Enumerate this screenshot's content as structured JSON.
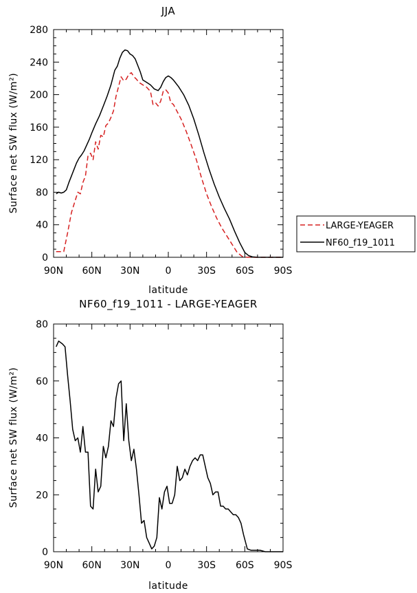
{
  "chart_data": [
    {
      "type": "line",
      "title": "JJA",
      "xlabel": "latitude",
      "ylabel": "Surface net SW flux (W/m²)",
      "xlim": [
        90,
        -90
      ],
      "ylim": [
        0,
        280
      ],
      "xticks": [
        90,
        60,
        30,
        0,
        -30,
        -60,
        -90
      ],
      "xtick_labels": [
        "90N",
        "60N",
        "30N",
        "0",
        "30S",
        "60S",
        "90S"
      ],
      "yticks": [
        0,
        40,
        80,
        120,
        160,
        200,
        240,
        280
      ],
      "ytick_labels": [
        "0",
        "40",
        "80",
        "120",
        "160",
        "200",
        "240",
        "280"
      ],
      "legend_position": "right-outside",
      "series": [
        {
          "name": "LARGE-YEAGER",
          "color": "#d62020",
          "style": "dashed",
          "x": [
            88,
            85,
            82,
            79,
            76,
            73,
            71,
            69,
            67,
            65,
            63,
            61,
            59,
            57,
            55,
            53,
            51,
            49,
            47,
            45,
            43,
            41,
            39,
            37,
            35,
            33,
            31,
            29,
            27,
            25,
            23,
            20,
            17,
            14,
            12,
            10,
            8,
            6,
            4,
            2,
            0,
            -2,
            -4,
            -6,
            -8,
            -10,
            -14,
            -18,
            -22,
            -26,
            -30,
            -34,
            -38,
            -42,
            -46,
            -50,
            -54,
            -58,
            -62,
            -66,
            -70,
            -75,
            -80,
            -86,
            -90
          ],
          "y": [
            7,
            7,
            7,
            30,
            55,
            70,
            80,
            78,
            92,
            100,
            125,
            128,
            120,
            142,
            133,
            150,
            148,
            162,
            165,
            172,
            180,
            198,
            210,
            222,
            217,
            219,
            225,
            227,
            222,
            219,
            215,
            212,
            209,
            204,
            188,
            190,
            186,
            192,
            204,
            206,
            202,
            190,
            188,
            182,
            176,
            170,
            155,
            138,
            120,
            98,
            78,
            62,
            48,
            36,
            26,
            16,
            6,
            1,
            0,
            0,
            0,
            0,
            0,
            0,
            0
          ]
        },
        {
          "name": "NF60_f19_1011",
          "color": "#000000",
          "style": "solid",
          "x": [
            88,
            86,
            84,
            82,
            80,
            78,
            76,
            74,
            72,
            70,
            68,
            66,
            64,
            62,
            60,
            57,
            54,
            51,
            48,
            45,
            42,
            40,
            38,
            36,
            34,
            32,
            30,
            28,
            26,
            24,
            22,
            20,
            17,
            14,
            11,
            8,
            6,
            4,
            2,
            0,
            -2,
            -4,
            -8,
            -12,
            -16,
            -20,
            -24,
            -28,
            -32,
            -36,
            -40,
            -44,
            -48,
            -52,
            -56,
            -60,
            -63,
            -66,
            -70,
            -75,
            -80,
            -86,
            -90
          ],
          "y": [
            78,
            80,
            79,
            80,
            83,
            92,
            100,
            108,
            116,
            122,
            126,
            131,
            138,
            145,
            153,
            164,
            174,
            186,
            198,
            212,
            230,
            235,
            245,
            252,
            255,
            254,
            250,
            248,
            244,
            236,
            228,
            218,
            215,
            212,
            207,
            205,
            209,
            216,
            221,
            223,
            221,
            218,
            210,
            200,
            187,
            170,
            150,
            128,
            108,
            90,
            74,
            60,
            47,
            32,
            18,
            6,
            2,
            0.5,
            0,
            0,
            0,
            0,
            0
          ]
        }
      ]
    },
    {
      "type": "line",
      "title": "NF60_f19_1011 - LARGE-YEAGER",
      "xlabel": "latitude",
      "ylabel": "Surface net SW flux (W/m²)",
      "xlim": [
        90,
        -90
      ],
      "ylim": [
        0,
        80
      ],
      "xticks": [
        90,
        60,
        30,
        0,
        -30,
        -60,
        -90
      ],
      "xtick_labels": [
        "90N",
        "60N",
        "30N",
        "0",
        "30S",
        "60S",
        "90S"
      ],
      "yticks": [
        0,
        20,
        40,
        60,
        80
      ],
      "ytick_labels": [
        "0",
        "20",
        "40",
        "60",
        "80"
      ],
      "series": [
        {
          "name": "NF60_f19_1011 - LARGE-YEAGER",
          "color": "#000000",
          "style": "solid",
          "x": [
            88,
            86,
            83,
            81,
            79,
            77,
            75,
            73,
            71,
            69,
            67,
            65,
            63,
            61,
            59,
            57,
            55,
            53,
            51,
            49,
            47,
            45,
            43,
            41,
            39,
            37,
            35,
            33,
            31,
            29,
            27,
            25,
            23,
            21,
            19,
            17,
            15,
            13,
            11,
            9,
            7,
            5,
            3,
            1,
            -1,
            -3,
            -5,
            -7,
            -9,
            -11,
            -13,
            -15,
            -17,
            -19,
            -21,
            -23,
            -25,
            -27,
            -29,
            -31,
            -33,
            -35,
            -37,
            -39,
            -41,
            -43,
            -45,
            -47,
            -49,
            -51,
            -53,
            -55,
            -57,
            -59,
            -62,
            -65,
            -68,
            -72,
            -76,
            -80,
            -84,
            -90
          ],
          "y": [
            72,
            74,
            73,
            72,
            62,
            53,
            43,
            39,
            40,
            35,
            44,
            35,
            35,
            16,
            15,
            29,
            21,
            23,
            37,
            33,
            37,
            46,
            44,
            54,
            59,
            60,
            39,
            52,
            39,
            32,
            36,
            29,
            20,
            10,
            11,
            5,
            3,
            1,
            2,
            5,
            19,
            15,
            21,
            23,
            17,
            17,
            20,
            30,
            25,
            26,
            29,
            27,
            30,
            32,
            33,
            32,
            34,
            34,
            30,
            26,
            24,
            20,
            21,
            21,
            16,
            16,
            15,
            15,
            14,
            13,
            13,
            12,
            10,
            6,
            1,
            0.5,
            0.5,
            0.5,
            0,
            0,
            0,
            0
          ]
        }
      ]
    }
  ]
}
